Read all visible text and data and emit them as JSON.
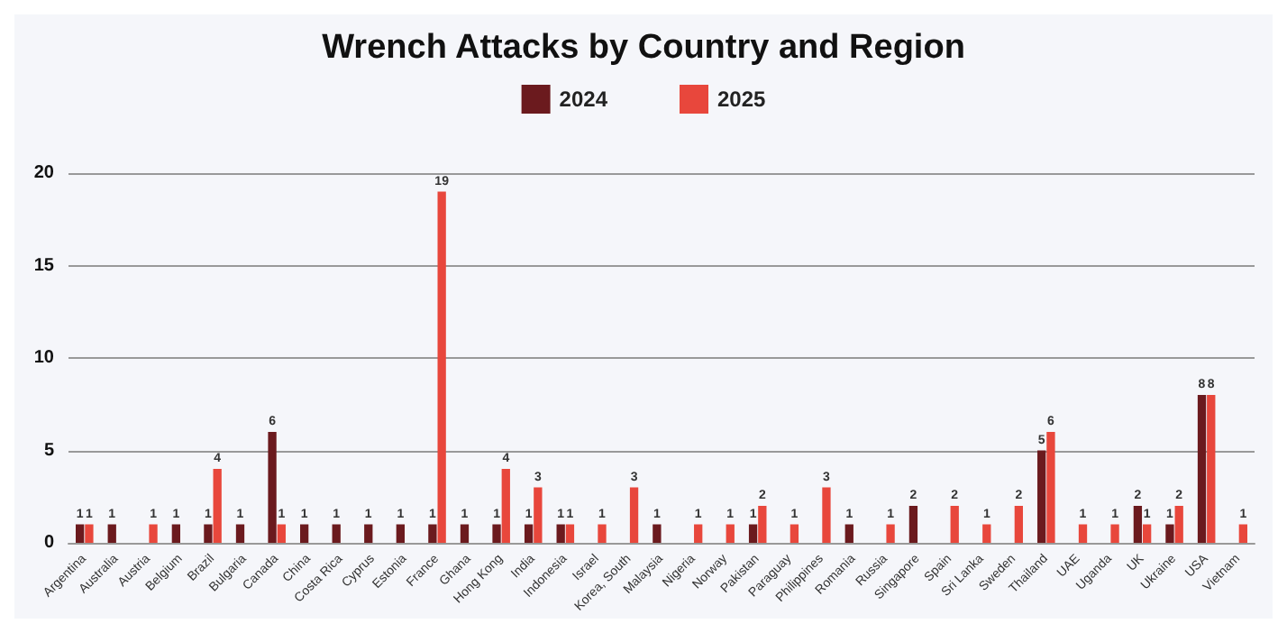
{
  "chart_data": {
    "type": "bar",
    "title": "Wrench Attacks by Country and Region",
    "categories": [
      "Argentina",
      "Australia",
      "Austria",
      "Belgium",
      "Brazil",
      "Bulgaria",
      "Canada",
      "China",
      "Costa Rica",
      "Cyprus",
      "Estonia",
      "France",
      "Ghana",
      "Hong Kong",
      "India",
      "Indonesia",
      "Israel",
      "Korea, South",
      "Malaysia",
      "Nigeria",
      "Norway",
      "Pakistan",
      "Paraguay",
      "Philippines",
      "Romania",
      "Russia",
      "Singapore",
      "Spain",
      "Sri Lanka",
      "Sweden",
      "Thailand",
      "UAE",
      "Uganda",
      "UK",
      "Ukraine",
      "USA",
      "Vietnam"
    ],
    "series": [
      {
        "name": "2024",
        "color": "#6b1a1e",
        "values": [
          1,
          1,
          null,
          1,
          1,
          1,
          6,
          1,
          1,
          1,
          1,
          1,
          1,
          1,
          1,
          1,
          null,
          null,
          1,
          null,
          null,
          1,
          null,
          null,
          1,
          null,
          2,
          null,
          null,
          null,
          5,
          null,
          null,
          2,
          1,
          8,
          null
        ]
      },
      {
        "name": "2025",
        "color": "#e8473c",
        "values": [
          1,
          null,
          1,
          null,
          4,
          null,
          1,
          null,
          null,
          null,
          null,
          19,
          null,
          4,
          3,
          1,
          1,
          3,
          null,
          1,
          1,
          2,
          1,
          3,
          null,
          1,
          null,
          2,
          1,
          2,
          6,
          1,
          1,
          1,
          2,
          8,
          1
        ]
      }
    ],
    "ylim": [
      0,
      20
    ],
    "yticks": [
      0,
      5,
      10,
      15,
      20
    ],
    "grid": "y",
    "legend": "top",
    "data_labels": true
  }
}
